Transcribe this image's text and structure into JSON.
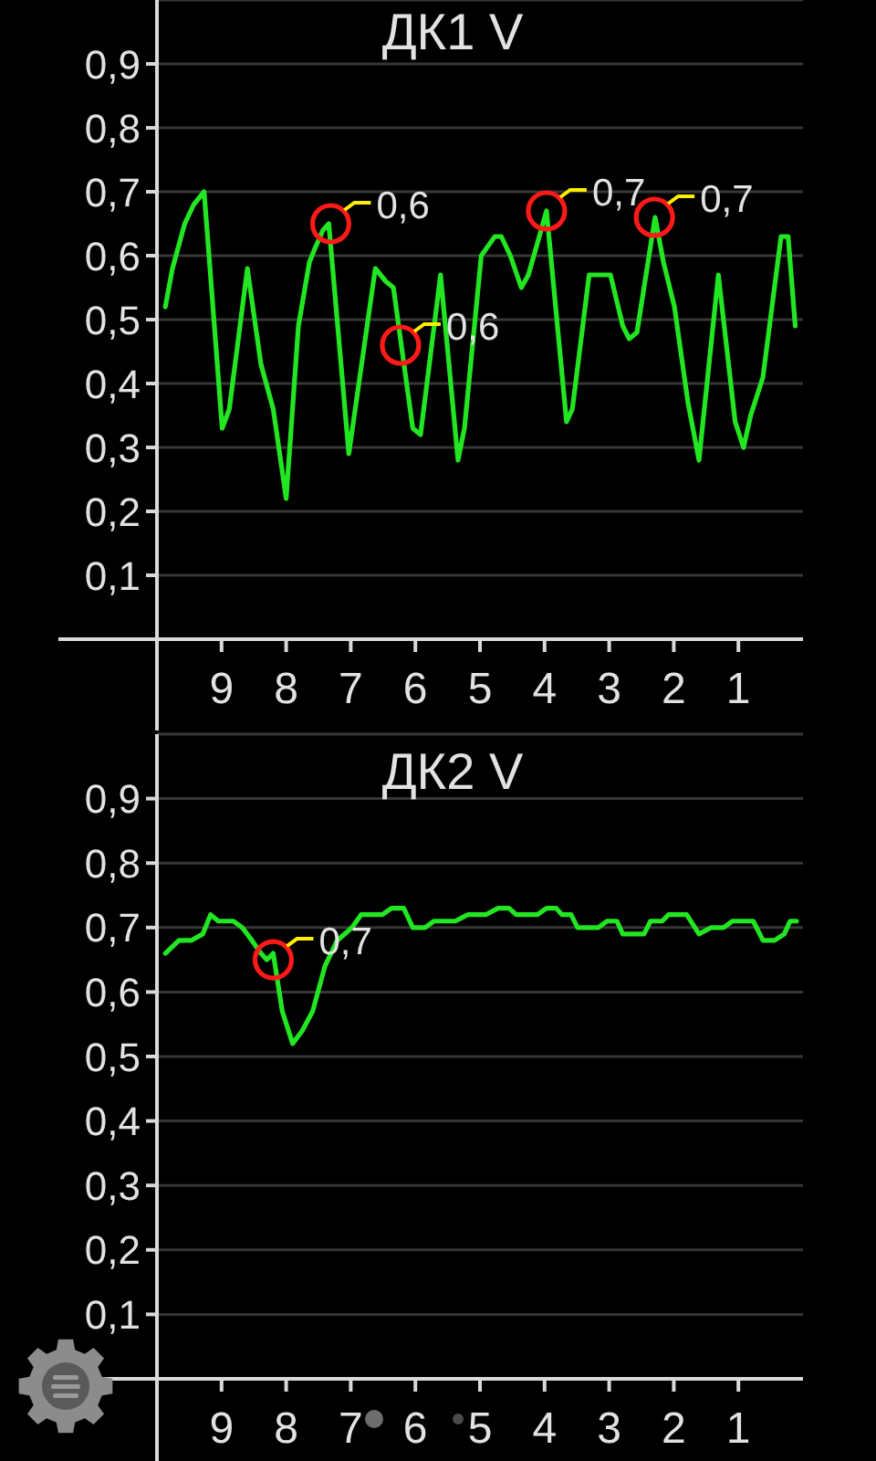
{
  "chart_data": [
    {
      "type": "line",
      "title": "ДК1 V",
      "color": "#22e622",
      "marker": "none",
      "line_style": "solid",
      "grid": "y",
      "x": [
        9.87,
        9.76,
        9.57,
        9.43,
        9.27,
        8.99,
        8.88,
        8.6,
        8.39,
        8.2,
        8.0,
        7.81,
        7.64,
        7.56,
        7.43,
        7.34,
        7.03,
        6.62,
        6.46,
        6.34,
        6.04,
        5.92,
        5.61,
        5.34,
        5.24,
        4.98,
        4.91,
        4.77,
        4.67,
        4.53,
        4.36,
        4.25,
        4.11,
        3.97,
        3.66,
        3.57,
        3.31,
        2.98,
        2.79,
        2.69,
        2.57,
        2.29,
        2.16,
        1.99,
        1.78,
        1.61,
        1.31,
        1.05,
        0.92,
        0.81,
        0.62,
        0.34,
        0.23,
        0.12
      ],
      "values": [
        0.52,
        0.58,
        0.65,
        0.68,
        0.7,
        0.33,
        0.36,
        0.58,
        0.43,
        0.36,
        0.22,
        0.49,
        0.59,
        0.61,
        0.64,
        0.65,
        0.29,
        0.58,
        0.56,
        0.55,
        0.33,
        0.32,
        0.57,
        0.28,
        0.33,
        0.6,
        0.61,
        0.63,
        0.63,
        0.6,
        0.55,
        0.57,
        0.62,
        0.67,
        0.34,
        0.36,
        0.57,
        0.57,
        0.49,
        0.47,
        0.48,
        0.66,
        0.59,
        0.52,
        0.37,
        0.28,
        0.57,
        0.34,
        0.3,
        0.35,
        0.41,
        0.63,
        0.63,
        0.49
      ],
      "xlim": [
        10,
        0
      ],
      "xticks": [
        9,
        8,
        7,
        6,
        5,
        4,
        3,
        2,
        1
      ],
      "ylim": [
        0,
        1
      ],
      "yticks": [
        {
          "value": 0.1,
          "label": "0,1"
        },
        {
          "value": 0.2,
          "label": "0,2"
        },
        {
          "value": 0.3,
          "label": "0,3"
        },
        {
          "value": 0.4,
          "label": "0,4"
        },
        {
          "value": 0.5,
          "label": "0,5"
        },
        {
          "value": 0.6,
          "label": "0,6"
        },
        {
          "value": 0.7,
          "label": "0,7"
        },
        {
          "value": 0.8,
          "label": "0,8"
        },
        {
          "value": 0.9,
          "label": "0,9"
        }
      ],
      "annotations": [
        {
          "text": "0,6",
          "x": 7.31,
          "y": 0.65
        },
        {
          "text": "0,6",
          "x": 6.23,
          "y": 0.46
        },
        {
          "text": "0,7",
          "x": 3.97,
          "y": 0.67
        },
        {
          "text": "0,7",
          "x": 2.3,
          "y": 0.66
        }
      ]
    },
    {
      "type": "line",
      "title": "ДК2 V",
      "color": "#22e622",
      "marker": "none",
      "line_style": "solid",
      "grid": "y",
      "x": [
        9.87,
        9.66,
        9.47,
        9.29,
        9.17,
        9.05,
        8.82,
        8.68,
        8.53,
        8.39,
        8.3,
        8.2,
        8.06,
        7.9,
        7.75,
        7.59,
        7.4,
        7.21,
        6.98,
        6.84,
        6.51,
        6.37,
        6.18,
        6.04,
        5.85,
        5.71,
        5.52,
        5.38,
        5.19,
        4.91,
        4.72,
        4.55,
        4.44,
        4.11,
        3.97,
        3.82,
        3.73,
        3.59,
        3.49,
        3.17,
        3.03,
        2.88,
        2.79,
        2.46,
        2.36,
        2.18,
        2.08,
        1.8,
        1.61,
        1.42,
        1.23,
        1.09,
        0.77,
        0.62,
        0.44,
        0.29,
        0.2,
        0.1
      ],
      "values": [
        0.66,
        0.68,
        0.68,
        0.69,
        0.72,
        0.71,
        0.71,
        0.7,
        0.68,
        0.66,
        0.65,
        0.66,
        0.57,
        0.52,
        0.54,
        0.57,
        0.64,
        0.68,
        0.7,
        0.72,
        0.72,
        0.73,
        0.73,
        0.7,
        0.7,
        0.71,
        0.71,
        0.71,
        0.72,
        0.72,
        0.73,
        0.73,
        0.72,
        0.72,
        0.73,
        0.73,
        0.72,
        0.72,
        0.7,
        0.7,
        0.71,
        0.71,
        0.69,
        0.69,
        0.71,
        0.71,
        0.72,
        0.72,
        0.69,
        0.7,
        0.7,
        0.71,
        0.71,
        0.68,
        0.68,
        0.69,
        0.71,
        0.71
      ],
      "xlim": [
        10,
        0
      ],
      "xticks": [
        9,
        8,
        7,
        6,
        5,
        4,
        3,
        2,
        1
      ],
      "ylim": [
        0,
        1
      ],
      "yticks": [
        {
          "value": 0.1,
          "label": "0,1"
        },
        {
          "value": 0.2,
          "label": "0,2"
        },
        {
          "value": 0.3,
          "label": "0,3"
        },
        {
          "value": 0.4,
          "label": "0,4"
        },
        {
          "value": 0.5,
          "label": "0,5"
        },
        {
          "value": 0.6,
          "label": "0,6"
        },
        {
          "value": 0.7,
          "label": "0,7"
        },
        {
          "value": 0.8,
          "label": "0,8"
        },
        {
          "value": 0.9,
          "label": "0,9"
        }
      ],
      "annotations": [
        {
          "text": "0,7",
          "x": 8.2,
          "y": 0.65
        }
      ]
    }
  ]
}
